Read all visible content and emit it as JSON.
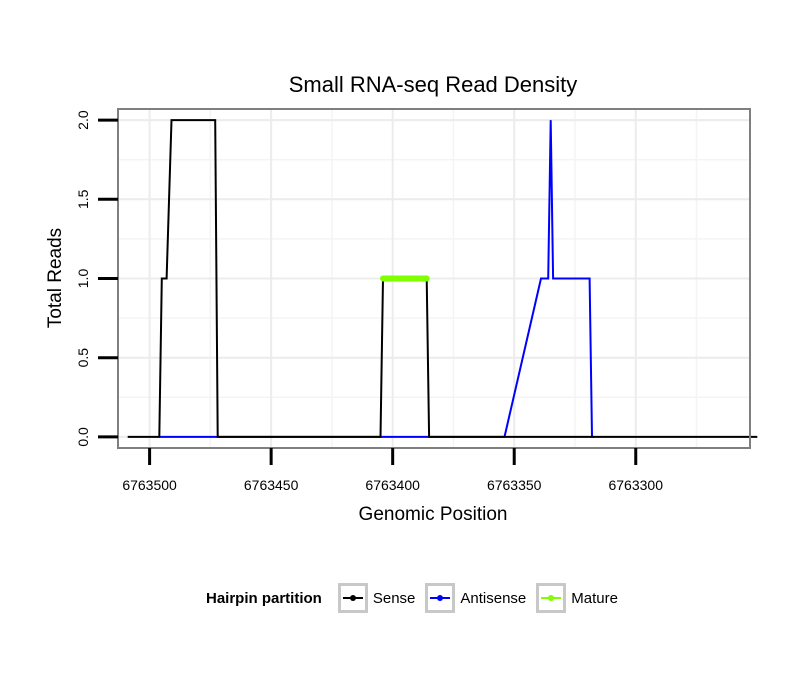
{
  "chart_data": {
    "type": "line",
    "title": "Small RNA-seq Read Density",
    "xlabel": "Genomic Position",
    "ylabel": "Total Reads",
    "xlim": [
      6763513,
      6763253
    ],
    "ylim": [
      -0.07,
      2.07
    ],
    "x_reversed": true,
    "x_ticks": [
      6763500,
      6763450,
      6763400,
      6763350,
      6763300
    ],
    "x_tick_labels": [
      "6763500",
      "6763450",
      "6763400",
      "6763350",
      "6763300"
    ],
    "y_ticks": [
      0,
      0.5,
      1,
      1.5,
      2
    ],
    "y_tick_labels": [
      "0.0",
      "0.5",
      "1.0",
      "1.5",
      "2.0"
    ],
    "grid": true,
    "series": [
      {
        "name": "Antisense",
        "color": "#0000ff",
        "x": [
          6763496,
          6763477,
          6763385,
          6763367,
          6763354,
          6763339,
          6763336,
          6763335,
          6763334,
          6763331,
          6763319,
          6763318,
          6763317
        ],
        "y": [
          0,
          0,
          0,
          0,
          0,
          1,
          1,
          2,
          1,
          1,
          1,
          0,
          0
        ]
      },
      {
        "name": "Sense",
        "color": "#000000",
        "x": [
          6763509,
          6763496,
          6763495,
          6763494,
          6763493,
          6763491,
          6763474,
          6763473,
          6763472,
          6763420,
          6763405,
          6763404,
          6763386,
          6763385,
          6763250
        ],
        "y": [
          0,
          0,
          1,
          1,
          1,
          2,
          2,
          2,
          0,
          0,
          0,
          1,
          1,
          0,
          0
        ]
      },
      {
        "name": "Mature",
        "color": "#7fff00",
        "x": [
          6763404,
          6763386
        ],
        "y": [
          1,
          1
        ]
      }
    ],
    "legend": {
      "title": "Hairpin partition",
      "position": "bottom",
      "entries": [
        {
          "name": "Sense",
          "color": "#000000"
        },
        {
          "name": "Antisense",
          "color": "#0000ff"
        },
        {
          "name": "Mature",
          "color": "#7fff00"
        }
      ]
    }
  }
}
